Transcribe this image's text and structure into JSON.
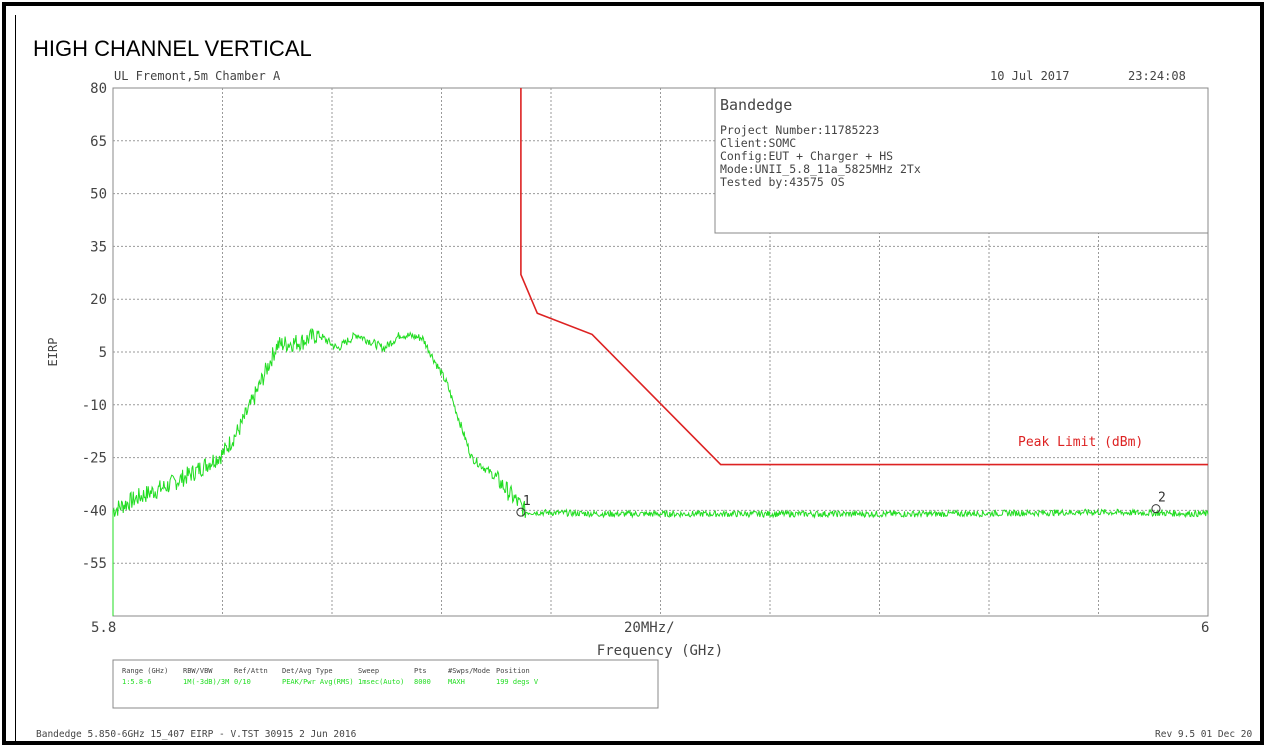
{
  "page_title": "HIGH CHANNEL VERTICAL",
  "header": {
    "site": "UL Fremont,5m Chamber A",
    "date": "10 Jul 2017",
    "time": "23:24:08"
  },
  "info_box": {
    "title": "Bandedge",
    "project": "Project Number:11785223",
    "client": "Client:SOMC",
    "config": "Config:EUT + Charger + HS",
    "mode": "Mode:UNII_5.8_11a_5825MHz 2Tx",
    "tested_by": "Tested by:43575 OS"
  },
  "settings": {
    "headers": [
      "Range (GHz)",
      "RBW/VBW",
      "Ref/Attn",
      "Det/Avg Type",
      "Sweep",
      "Pts",
      "#Swps/Mode",
      "Position"
    ],
    "values": [
      "1:5.8-6",
      "1M(-3dB)/3M",
      "0/10",
      "PEAK/Pwr Avg(RMS)",
      "1msec(Auto)",
      "8000",
      "MAXH",
      "199 degs V"
    ]
  },
  "footer": {
    "left": "Bandedge 5.850-6GHz 15_407 EIRP - V.TST 30915  2 Jun 2016",
    "right": "Rev 9.5 01 Dec 20"
  },
  "colors": {
    "trace": "#22dd22",
    "limit": "#dd2222",
    "grid": "#9a9a9a",
    "text": "#444444"
  },
  "chart_data": {
    "type": "line",
    "title": "",
    "xlabel": "Frequency (GHz)",
    "ylabel": "EIRP",
    "x_tick_labels": [
      "5.8",
      "20MHz/",
      "6"
    ],
    "xlim": [
      5.8,
      6.0
    ],
    "ylim": [
      -70,
      80
    ],
    "y_ticks": [
      80,
      65,
      50,
      35,
      20,
      5,
      -10,
      -25,
      -40,
      -55
    ],
    "grid": true,
    "series": [
      {
        "name": "",
        "style": "noisy-measurement",
        "x": [
          5.8,
          5.805,
          5.81,
          5.815,
          5.82,
          5.823,
          5.8255,
          5.83,
          5.8345,
          5.8375,
          5.841,
          5.8445,
          5.8495,
          5.8525,
          5.8565,
          5.861,
          5.8655,
          5.8695,
          5.8735,
          5.8755,
          5.89,
          5.92,
          5.95,
          5.98,
          6.0
        ],
        "y": [
          -40,
          -36,
          -33,
          -29,
          -24,
          -17,
          -9,
          7,
          8,
          10,
          6,
          10,
          6,
          10,
          9,
          -4,
          -25,
          -30,
          -37,
          -40.5,
          -41,
          -41,
          -41,
          -40.5,
          -41
        ]
      },
      {
        "name": "Peak Limit (dBm)",
        "x": [
          5.8745,
          5.8745,
          5.8775,
          5.8875,
          5.911,
          5.911,
          6.0
        ],
        "y": [
          80,
          27,
          16,
          10,
          -27,
          -27,
          -27
        ]
      }
    ],
    "markers": [
      {
        "label": "1",
        "x": 5.8745,
        "y": -40.5
      },
      {
        "label": "2",
        "x": 5.9905,
        "y": -39.5
      }
    ],
    "legend": "limit label near right end of limit line"
  }
}
